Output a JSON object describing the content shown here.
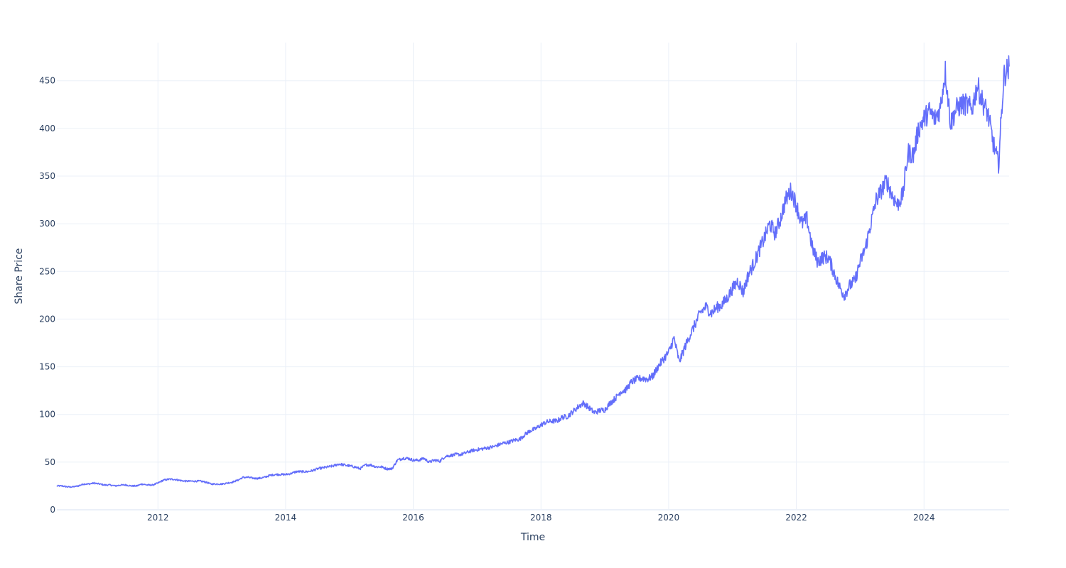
{
  "chart_data": {
    "type": "line",
    "title": "",
    "xlabel": "Time",
    "ylabel": "Share Price",
    "grid": true,
    "x_tick_labels": [
      "2012",
      "2014",
      "2016",
      "2018",
      "2020",
      "2022",
      "2024"
    ],
    "y_tick_labels": [
      "0",
      "50",
      "100",
      "150",
      "200",
      "250",
      "300",
      "350",
      "400",
      "450"
    ],
    "xlim": [
      "2010-06",
      "2025-05"
    ],
    "ylim": [
      0,
      490
    ],
    "series_color": "#636efa",
    "series": [
      {
        "x": [
          "2010-06",
          "2010-07",
          "2010-08",
          "2010-09",
          "2010-10",
          "2010-11",
          "2010-12",
          "2011-01",
          "2011-02",
          "2011-03",
          "2011-04",
          "2011-05",
          "2011-06",
          "2011-07",
          "2011-08",
          "2011-09",
          "2011-10",
          "2011-11",
          "2011-12",
          "2012-01",
          "2012-02",
          "2012-03",
          "2012-04",
          "2012-05",
          "2012-06",
          "2012-07",
          "2012-08",
          "2012-09",
          "2012-10",
          "2012-11",
          "2012-12",
          "2013-01",
          "2013-02",
          "2013-03",
          "2013-04",
          "2013-05",
          "2013-06",
          "2013-07",
          "2013-08",
          "2013-09",
          "2013-10",
          "2013-11",
          "2013-12",
          "2014-01",
          "2014-02",
          "2014-03",
          "2014-04",
          "2014-05",
          "2014-06",
          "2014-07",
          "2014-08",
          "2014-09",
          "2014-10",
          "2014-11",
          "2014-12",
          "2015-01",
          "2015-02",
          "2015-03",
          "2015-04",
          "2015-05",
          "2015-06",
          "2015-07",
          "2015-08",
          "2015-09",
          "2015-10",
          "2015-11",
          "2015-12",
          "2016-01",
          "2016-02",
          "2016-03",
          "2016-04",
          "2016-05",
          "2016-06",
          "2016-07",
          "2016-08",
          "2016-09",
          "2016-10",
          "2016-11",
          "2016-12",
          "2017-01",
          "2017-02",
          "2017-03",
          "2017-04",
          "2017-05",
          "2017-06",
          "2017-07",
          "2017-08",
          "2017-09",
          "2017-10",
          "2017-11",
          "2017-12",
          "2018-01",
          "2018-02",
          "2018-03",
          "2018-04",
          "2018-05",
          "2018-06",
          "2018-07",
          "2018-08",
          "2018-09",
          "2018-10",
          "2018-11",
          "2018-12",
          "2019-01",
          "2019-02",
          "2019-03",
          "2019-04",
          "2019-05",
          "2019-06",
          "2019-07",
          "2019-08",
          "2019-09",
          "2019-10",
          "2019-11",
          "2019-12",
          "2020-01",
          "2020-02",
          "2020-03",
          "2020-04",
          "2020-05",
          "2020-06",
          "2020-07",
          "2020-08",
          "2020-09",
          "2020-10",
          "2020-11",
          "2020-12",
          "2021-01",
          "2021-02",
          "2021-03",
          "2021-04",
          "2021-05",
          "2021-06",
          "2021-07",
          "2021-08",
          "2021-09",
          "2021-10",
          "2021-11",
          "2021-12",
          "2022-01",
          "2022-02",
          "2022-03",
          "2022-04",
          "2022-05",
          "2022-06",
          "2022-07",
          "2022-08",
          "2022-09",
          "2022-10",
          "2022-11",
          "2022-12",
          "2023-01",
          "2023-02",
          "2023-03",
          "2023-04",
          "2023-05",
          "2023-06",
          "2023-07",
          "2023-08",
          "2023-09",
          "2023-10",
          "2023-11",
          "2023-12",
          "2024-01",
          "2024-02",
          "2024-03",
          "2024-04",
          "2024-05",
          "2024-06",
          "2024-07",
          "2024-08",
          "2024-09",
          "2024-10",
          "2024-11",
          "2024-12",
          "2025-01",
          "2025-02",
          "2025-03",
          "2025-04",
          "2025-05"
        ],
        "y": [
          25,
          25,
          24,
          24,
          25,
          27,
          27,
          28,
          27,
          26,
          26,
          25,
          26,
          26,
          25,
          25,
          27,
          26,
          26,
          28,
          31,
          32,
          32,
          31,
          30,
          30,
          30,
          30,
          29,
          27,
          27,
          27,
          28,
          29,
          31,
          34,
          34,
          33,
          33,
          34,
          36,
          37,
          37,
          37,
          38,
          40,
          40,
          40,
          41,
          43,
          44,
          45,
          46,
          48,
          47,
          46,
          45,
          43,
          47,
          47,
          45,
          45,
          43,
          43,
          52,
          54,
          54,
          52,
          52,
          54,
          50,
          52,
          51,
          56,
          57,
          58,
          58,
          60,
          62,
          63,
          64,
          65,
          66,
          68,
          70,
          71,
          73,
          74,
          79,
          83,
          85,
          89,
          92,
          93,
          93,
          97,
          98,
          103,
          108,
          112,
          107,
          102,
          104,
          105,
          112,
          117,
          124,
          126,
          134,
          137,
          138,
          137,
          140,
          150,
          158,
          165,
          180,
          155,
          170,
          183,
          195,
          207,
          213,
          206,
          212,
          215,
          222,
          232,
          240,
          228,
          247,
          258,
          272,
          285,
          300,
          290,
          305,
          325,
          335,
          320,
          300,
          305,
          275,
          260,
          265,
          265,
          250,
          235,
          225,
          235,
          240,
          260,
          275,
          300,
          325,
          335,
          345,
          330,
          320,
          330,
          375,
          372,
          400,
          410,
          418,
          410,
          420,
          460,
          405,
          420,
          425,
          425,
          420,
          445,
          428,
          415,
          385,
          362,
          455,
          465
        ]
      }
    ]
  }
}
